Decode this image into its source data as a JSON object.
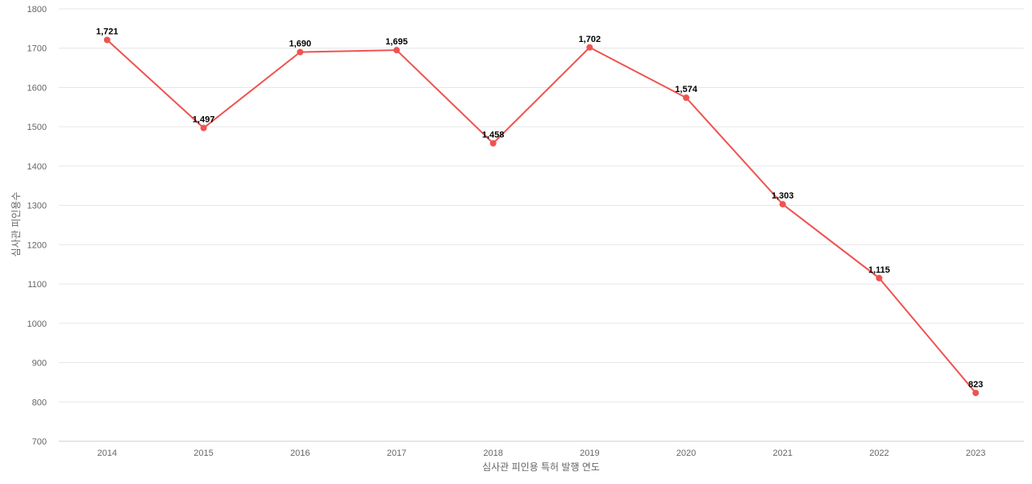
{
  "chart_data": {
    "type": "line",
    "categories": [
      "2014",
      "2015",
      "2016",
      "2017",
      "2018",
      "2019",
      "2020",
      "2021",
      "2022",
      "2023"
    ],
    "series": [
      {
        "values": [
          1721,
          1497,
          1690,
          1695,
          1458,
          1702,
          1574,
          1303,
          1115,
          823
        ]
      }
    ],
    "data_labels": [
      "1,721",
      "1,497",
      "1,690",
      "1,695",
      "1,458",
      "1,702",
      "1,574",
      "1,303",
      "1,115",
      "823"
    ],
    "xlabel": "심사관 피인용 특허 발행 연도",
    "ylabel": "심사관 피인용수",
    "ylim": [
      700,
      1800
    ],
    "yticks": [
      "700",
      "800",
      "900",
      "1000",
      "1100",
      "1200",
      "1300",
      "1400",
      "1500",
      "1600",
      "1700",
      "1800"
    ],
    "grid": true,
    "legend": "none",
    "line_color": "#ef5350"
  }
}
